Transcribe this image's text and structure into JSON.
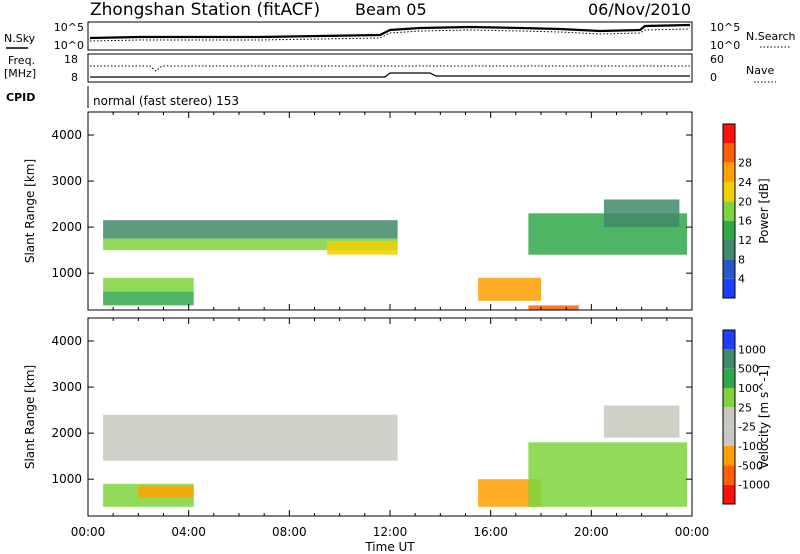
{
  "header": {
    "title": "Zhongshan Station (fitACF)",
    "beam": "Beam 05",
    "date": "06/Nov/2010"
  },
  "noise_panel": {
    "left_label": "N.Sky",
    "right_label": "N.Search",
    "left_ticks": [
      "10^5",
      "10^0"
    ],
    "right_ticks": [
      "10^5",
      "10^0"
    ]
  },
  "freq_panel": {
    "left_label_line1": "Freq.",
    "left_label_line2": "[MHz]",
    "right_label": "Nave",
    "left_ticks": [
      "18",
      "8"
    ],
    "right_ticks": [
      "60",
      "0"
    ]
  },
  "cpid": {
    "label": "CPID",
    "text": "normal (fast stereo) 153"
  },
  "colors": {
    "power": [
      "#1f3fff",
      "#2a56c8",
      "#3f8a67",
      "#2fa84a",
      "#7fd43d",
      "#f0d000",
      "#ff9f00",
      "#ff5f00",
      "#ff1010"
    ],
    "velocity": [
      "#ff1010",
      "#ff5f00",
      "#ff9f00",
      "#c8c8c0",
      "#c8c8c0",
      "#7fd43d",
      "#2fa84a",
      "#3f8a67",
      "#1f3fff"
    ]
  },
  "chart_data": [
    {
      "type": "heatmap",
      "name": "power",
      "xlabel": "",
      "ylabel": "Slant Range [km]",
      "xlim": [
        0,
        24
      ],
      "ylim": [
        200,
        4500
      ],
      "y_ticks": [
        "1000",
        "2000",
        "3000",
        "4000"
      ],
      "colorbar": {
        "label": "Power [dB]",
        "ticks": [
          "4",
          "8",
          "12",
          "16",
          "20",
          "24",
          "28"
        ],
        "range": [
          0,
          32
        ]
      },
      "regions": [
        {
          "t": [
            0.6,
            12.3
          ],
          "r": [
            1500,
            1750
          ],
          "value": 16
        },
        {
          "t": [
            0.6,
            12.3
          ],
          "r": [
            1750,
            2150
          ],
          "value": 8
        },
        {
          "t": [
            0.6,
            4.2
          ],
          "r": [
            600,
            900
          ],
          "value": 16
        },
        {
          "t": [
            0.6,
            4.2
          ],
          "r": [
            300,
            600
          ],
          "value": 12
        },
        {
          "t": [
            9.5,
            12.3
          ],
          "r": [
            1400,
            1700
          ],
          "value": 20
        },
        {
          "t": [
            15.5,
            18.0
          ],
          "r": [
            400,
            900
          ],
          "value": 24
        },
        {
          "t": [
            17.5,
            23.8
          ],
          "r": [
            1400,
            2300
          ],
          "value": 12
        },
        {
          "t": [
            20.5,
            23.5
          ],
          "r": [
            2000,
            2600
          ],
          "value": 8
        },
        {
          "t": [
            17.5,
            19.5
          ],
          "r": [
            200,
            300
          ],
          "value": 28
        }
      ]
    },
    {
      "type": "heatmap",
      "name": "velocity",
      "xlabel": "Time UT",
      "ylabel": "Slant Range [km]",
      "xlim": [
        0,
        24
      ],
      "ylim": [
        200,
        4500
      ],
      "x_ticks": [
        "00:00",
        "04:00",
        "08:00",
        "12:00",
        "16:00",
        "20:00",
        "00:00"
      ],
      "y_ticks": [
        "1000",
        "2000",
        "3000",
        "4000"
      ],
      "colorbar": {
        "label": "Velocity [m s^-1]",
        "ticks": [
          "1000",
          "500",
          "100",
          "25",
          "-25",
          "-100",
          "-500",
          "-1000"
        ]
      },
      "regions": [
        {
          "t": [
            0.6,
            12.3
          ],
          "r": [
            1400,
            2400
          ],
          "value": 0
        },
        {
          "t": [
            0.6,
            4.2
          ],
          "r": [
            400,
            900
          ],
          "value": 100
        },
        {
          "t": [
            2.0,
            4.2
          ],
          "r": [
            600,
            850
          ],
          "value": -100
        },
        {
          "t": [
            15.5,
            18.0
          ],
          "r": [
            400,
            1000
          ],
          "value": -100
        },
        {
          "t": [
            17.5,
            23.8
          ],
          "r": [
            400,
            1800
          ],
          "value": 100
        },
        {
          "t": [
            20.5,
            23.5
          ],
          "r": [
            1900,
            2600
          ],
          "value": 0
        }
      ]
    }
  ]
}
